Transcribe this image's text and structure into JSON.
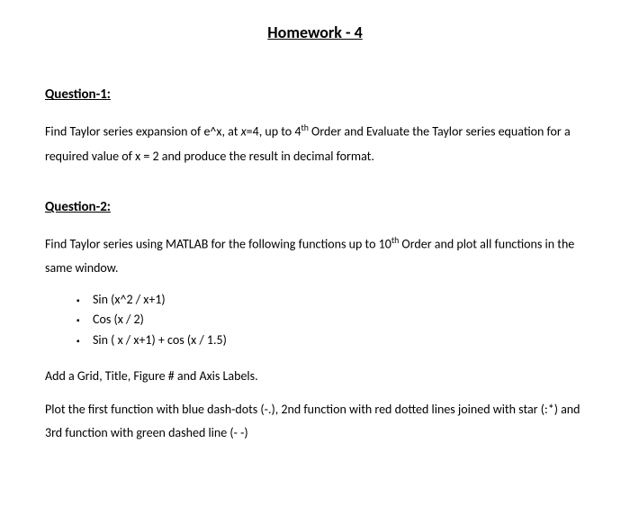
{
  "title": "Homework - 4",
  "q1": {
    "heading": "Question-1:",
    "text_part1": "Find Taylor series expansion of e^x, at ",
    "text_italic1": "x",
    "text_part2": "=4, up to 4",
    "text_sup1": "th",
    "text_part3": " Order and Evaluate the Taylor series equation for a required value of x = 2 and produce the result in decimal format."
  },
  "q2": {
    "heading": "Question-2:",
    "para1_part1": "Find Taylor series using MATLAB for the following functions up to 10",
    "para1_sup": "th",
    "para1_part2": " Order and plot all functions in the same window.",
    "bullets": [
      "Sin (x^2 / x+1)",
      "Cos (x / 2)",
      "Sin ( x / x+1) + cos (x / 1.5)"
    ],
    "para2": "Add a Grid, Title, Figure # and Axis Labels.",
    "para3": "Plot the first function with blue dash-dots (-.),  2nd function with red dotted lines joined with star (:*) and 3rd function with green dashed line (- -)"
  }
}
